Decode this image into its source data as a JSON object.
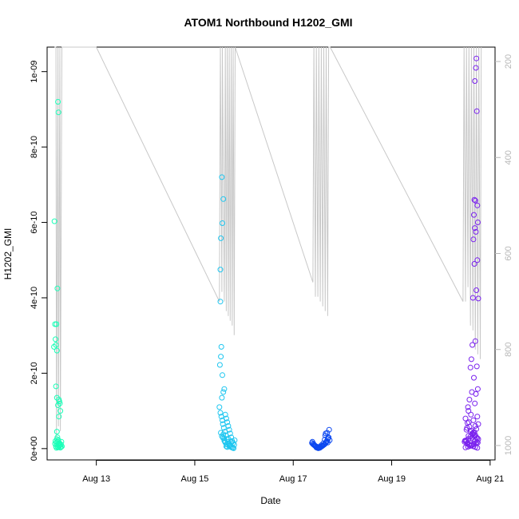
{
  "chart_data": {
    "type": "scatter",
    "title": "ATOM1 Northbound H1202_GMI",
    "xlabel": "Date",
    "ylabel": "H1202_GMI",
    "x_ticks": [
      "Aug 13",
      "Aug 15",
      "Aug 17",
      "Aug 19",
      "Aug 21"
    ],
    "x_tick_values": [
      13,
      15,
      17,
      19,
      21
    ],
    "xlim": [
      12.0,
      21.1
    ],
    "y_ticks": [
      "0e+00",
      "2e-10",
      "4e-10",
      "6e-10",
      "8e-10",
      "1e-09"
    ],
    "y_tick_values": [
      0,
      2e-10,
      4e-10,
      6e-10,
      8e-10,
      1e-09
    ],
    "ylim": [
      -3e-11,
      1.065e-09
    ],
    "right_axis": {
      "ticks": [
        "200",
        "400",
        "600",
        "800",
        "1000"
      ],
      "tick_values": [
        200,
        400,
        600,
        800,
        1000
      ],
      "lim": [
        170,
        1030
      ],
      "reversed": true,
      "color": "#b8b8b8"
    },
    "grid": false,
    "line_color": "#c8c8c8",
    "series": [
      {
        "color": "#1aff b8",
        "x": [
          12.15,
          12.16,
          12.17,
          12.18,
          12.19,
          12.2,
          12.21,
          12.22,
          12.23,
          12.24,
          12.25,
          12.26,
          12.27,
          12.18,
          12.2,
          12.22,
          12.24,
          12.14,
          12.17,
          12.21,
          12.25,
          12.22,
          12.21,
          12.2,
          12.19,
          12.23,
          12.24,
          12.28,
          12.29,
          12.3,
          12.19,
          12.22,
          12.25,
          12.28,
          12.2,
          12.23,
          12.26,
          12.18,
          12.24,
          12.27,
          12.21,
          12.16
        ],
        "y": [
          6.03e-10,
          3.3e-10,
          2.9e-10,
          2.75e-10,
          3.3e-10,
          2.6e-10,
          4.25e-10,
          9.2e-10,
          8.92e-10,
          1.3e-10,
          1.25e-10,
          1.2e-10,
          1e-10,
          1.65e-10,
          1.35e-10,
          1.15e-10,
          8.5e-11,
          2.7e-10,
          2e-11,
          3e-11,
          1.5e-11,
          5e-12,
          1e-11,
          2.5e-11,
          2e-12,
          8e-12,
          1.2e-11,
          4e-12,
          1.8e-11,
          6e-12,
          1.5e-11,
          3e-12,
          7e-12,
          1.1e-11,
          4.5e-11,
          2.2e-11,
          9e-12,
          6e-12,
          1.4e-11,
          2.5e-12,
          1.9e-11,
          1.3e-11
        ]
      },
      {
        "color": "#1ec6f0",
        "x": [
          15.55,
          15.58,
          15.56,
          15.53,
          15.52,
          15.52,
          15.54,
          15.53,
          15.51,
          15.56,
          15.6,
          15.58,
          15.55,
          15.5,
          15.62,
          15.64,
          15.66,
          15.68,
          15.7,
          15.72,
          15.74,
          15.76,
          15.78,
          15.8,
          15.57,
          15.59,
          15.61,
          15.63,
          15.65,
          15.67,
          15.69,
          15.71,
          15.73,
          15.75,
          15.77,
          15.79,
          15.81,
          15.52,
          15.54,
          15.56,
          15.58,
          15.6,
          15.62,
          15.64,
          15.66,
          15.68,
          15.7,
          15.72,
          15.55,
          15.6,
          15.65,
          15.7,
          15.75,
          15.53,
          15.57,
          15.61
        ],
        "y": [
          7.2e-10,
          6.62e-10,
          5.98e-10,
          5.58e-10,
          4.75e-10,
          3.9e-10,
          2.7e-10,
          2.44e-10,
          2.22e-10,
          1.95e-10,
          1.58e-10,
          1.5e-10,
          1.35e-10,
          1.1e-10,
          9e-11,
          8e-11,
          7e-11,
          6e-11,
          5e-11,
          4e-11,
          3e-11,
          2e-11,
          1.5e-11,
          1e-11,
          6.5e-11,
          5.5e-11,
          4.5e-11,
          3.5e-11,
          2.5e-11,
          1.8e-11,
          1.2e-11,
          8e-12,
          5e-12,
          3e-12,
          2e-12,
          1e-12,
          2.2e-11,
          9.5e-11,
          8.5e-11,
          7.5e-11,
          3.8e-11,
          2.8e-11,
          1.6e-11,
          6e-12,
          4e-12,
          2.6e-11,
          1.4e-11,
          9e-12,
          3.3e-11,
          2.1e-11,
          1.1e-11,
          7e-12,
          1.7e-11,
          4.2e-11,
          2.9e-11,
          1.9e-11
        ]
      },
      {
        "color": "#0c48f0",
        "x": [
          17.38,
          17.4,
          17.42,
          17.44,
          17.46,
          17.48,
          17.5,
          17.52,
          17.54,
          17.56,
          17.58,
          17.6,
          17.62,
          17.64,
          17.66,
          17.68,
          17.7,
          17.72,
          17.74,
          17.39,
          17.43,
          17.47,
          17.51,
          17.55,
          17.59,
          17.63,
          17.67,
          17.71,
          17.41,
          17.45,
          17.49,
          17.53,
          17.57,
          17.61,
          17.65,
          17.69,
          17.73,
          17.66,
          17.68,
          17.7,
          17.64
        ],
        "y": [
          1.5e-11,
          1.2e-11,
          1e-11,
          8e-12,
          6e-12,
          5e-12,
          4e-12,
          3e-12,
          2e-12,
          4e-12,
          6e-12,
          8e-12,
          1e-11,
          1.2e-11,
          1.5e-11,
          2e-11,
          2.5e-11,
          3e-11,
          2.2e-11,
          1.8e-11,
          9e-12,
          3e-12,
          1e-12,
          5e-12,
          7e-12,
          1.1e-11,
          1.7e-11,
          2.8e-11,
          1.3e-11,
          7e-12,
          2e-12,
          3.5e-12,
          9e-12,
          1.4e-11,
          3.5e-11,
          4.2e-11,
          5e-11,
          4e-11,
          1.9e-11,
          1.6e-11,
          2.4e-11
        ]
      },
      {
        "color": "#7a22ee",
        "x": [
          20.72,
          20.71,
          20.69,
          20.73,
          20.68,
          20.7,
          20.74,
          20.67,
          20.75,
          20.69,
          20.71,
          20.66,
          20.74,
          20.68,
          20.72,
          20.65,
          20.76,
          20.7,
          20.64,
          20.62,
          20.73,
          20.6,
          20.67,
          20.75,
          20.63,
          20.71,
          20.58,
          20.69,
          20.55,
          20.56,
          20.61,
          20.74,
          20.66,
          20.57,
          20.7,
          20.53,
          20.52,
          20.6,
          20.64,
          20.68,
          20.72,
          20.76,
          20.51,
          20.54,
          20.58,
          20.62,
          20.66,
          20.7,
          20.74,
          20.5,
          20.55,
          20.59,
          20.63,
          20.67,
          20.71,
          20.75,
          20.48,
          20.52,
          20.56,
          20.6,
          20.64,
          20.68,
          20.72,
          20.76,
          20.5,
          20.54,
          20.58,
          20.62,
          20.66,
          20.7,
          20.74,
          20.53,
          20.57,
          20.61,
          20.65,
          20.69,
          20.73,
          20.49,
          20.56,
          20.63,
          20.7
        ],
        "y": [
          1.035e-09,
          1.01e-09,
          9.75e-10,
          8.95e-10,
          6.6e-10,
          6.58e-10,
          6.45e-10,
          6.2e-10,
          6e-10,
          5.85e-10,
          5.75e-10,
          5.55e-10,
          5e-10,
          4.9e-10,
          4.2e-10,
          4e-10,
          3.98e-10,
          2.85e-10,
          2.75e-10,
          2.37e-10,
          2.18e-10,
          2.15e-10,
          1.88e-10,
          1.58e-10,
          1.5e-10,
          1.45e-10,
          1.3e-10,
          1.2e-10,
          1.1e-10,
          1e-10,
          9e-11,
          8.5e-11,
          7.5e-11,
          7e-11,
          6e-11,
          5.5e-11,
          5e-11,
          4.5e-11,
          4e-11,
          3.5e-11,
          3e-11,
          2.5e-11,
          2e-11,
          1.5e-11,
          1e-11,
          8e-12,
          6e-12,
          4e-12,
          2e-12,
          3e-12,
          5e-12,
          7e-12,
          9e-12,
          1.2e-11,
          1.4e-11,
          1.6e-11,
          1.8e-11,
          2.2e-11,
          2.6e-11,
          3.2e-11,
          3.8e-11,
          4.4e-11,
          5.2e-11,
          6.5e-11,
          8e-11,
          6.8e-11,
          5.8e-11,
          4.8e-11,
          4.2e-11,
          3.6e-11,
          2.8e-11,
          1.3e-11,
          1.1e-11,
          9.5e-12,
          2.4e-11,
          1.9e-11,
          1.7e-11,
          2.1e-11,
          3.4e-11,
          2.9e-11,
          2.3e-11
        ]
      }
    ],
    "line_series": {
      "x": [
        12.15,
        12.18,
        12.19,
        12.22,
        12.23,
        12.26,
        12.27,
        12.3,
        13.0,
        15.5,
        15.52,
        15.55,
        15.56,
        15.6,
        15.62,
        15.64,
        15.66,
        15.68,
        15.7,
        15.72,
        15.74,
        15.76,
        15.78,
        15.8,
        15.82,
        17.4,
        17.42,
        17.45,
        17.47,
        17.5,
        17.52,
        17.55,
        17.57,
        17.6,
        17.62,
        17.65,
        17.67,
        17.7,
        17.72,
        17.75,
        20.45,
        20.47,
        20.5,
        20.52,
        20.55,
        20.57,
        20.6,
        20.62,
        20.65,
        20.67,
        20.7,
        20.72,
        20.75,
        20.77,
        20.8,
        20.82
      ],
      "y": [
        170,
        170,
        990,
        170,
        960,
        170,
        970,
        170,
        170,
        700,
        170,
        680,
        170,
        700,
        170,
        720,
        170,
        730,
        170,
        740,
        170,
        750,
        170,
        770,
        170,
        660,
        170,
        690,
        170,
        690,
        170,
        700,
        170,
        710,
        170,
        720,
        170,
        730,
        170,
        170,
        700,
        170,
        700,
        170,
        670,
        170,
        750,
        170,
        760,
        170,
        800,
        170,
        810,
        170,
        820,
        170
      ]
    }
  }
}
